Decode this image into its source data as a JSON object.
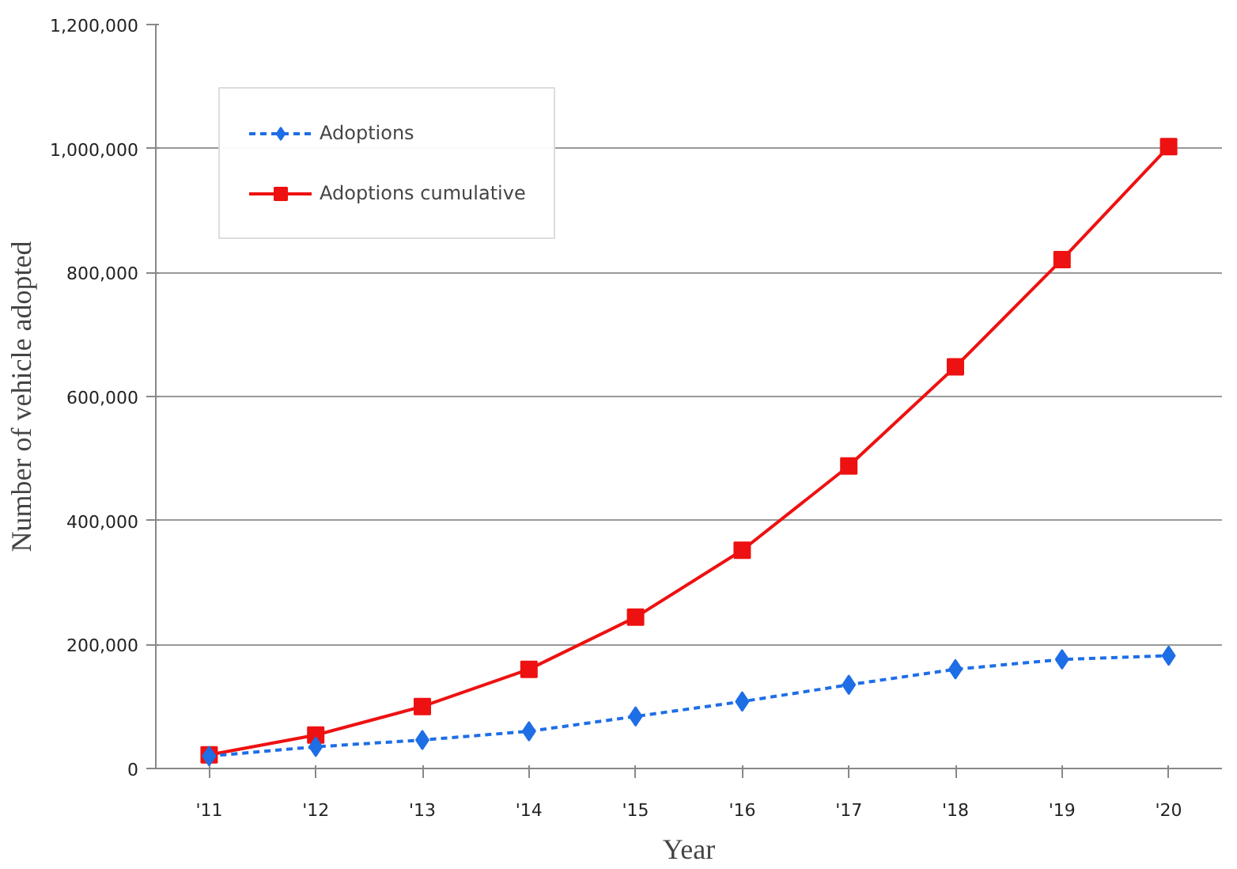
{
  "chart_data": {
    "type": "line",
    "xlabel": "Year",
    "ylabel": "Number of vehicle adopted",
    "categories": [
      "'11",
      "'12",
      "'13",
      "'14",
      "'15",
      "'16",
      "'17",
      "'18",
      "'19",
      "'20"
    ],
    "series": [
      {
        "name": "Adoptions",
        "color": "#1e6ee6",
        "marker": "diamond",
        "line_style": "dashed",
        "values": [
          20000,
          35000,
          46000,
          60000,
          84000,
          108000,
          135000,
          160000,
          176000,
          182000
        ]
      },
      {
        "name": "Adoptions cumulative",
        "color": "#ee1111",
        "marker": "square",
        "line_style": "solid",
        "values": [
          22000,
          54000,
          100000,
          160000,
          244000,
          352000,
          488000,
          648000,
          821000,
          1003000
        ]
      }
    ],
    "ylim": [
      0,
      1200000
    ],
    "yticks": [
      {
        "value": 0,
        "label": "0"
      },
      {
        "value": 200000,
        "label": "200,000"
      },
      {
        "value": 400000,
        "label": "400,000"
      },
      {
        "value": 600000,
        "label": "600,000"
      },
      {
        "value": 800000,
        "label": "800,000"
      },
      {
        "value": 1000000,
        "label": "1,000,000"
      },
      {
        "value": 1200000,
        "label": "1,200,000"
      }
    ],
    "grid": "y",
    "legend": "top left"
  }
}
